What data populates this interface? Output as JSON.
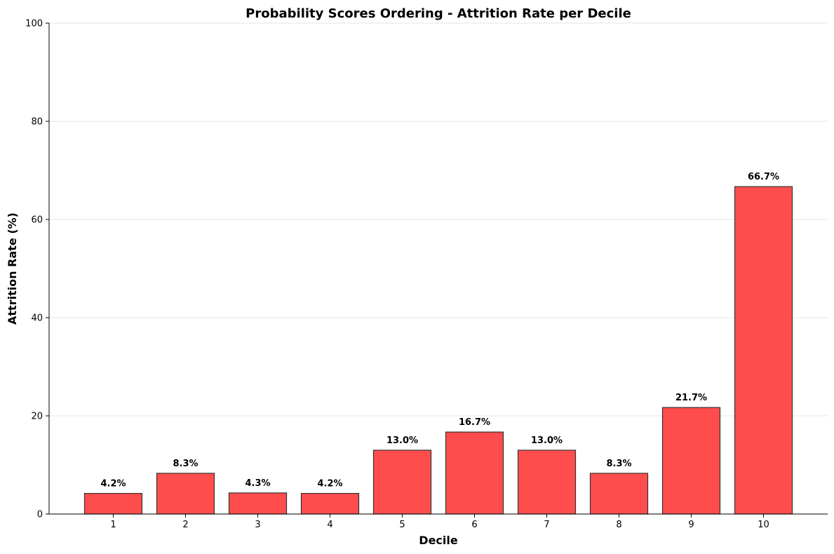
{
  "chart_data": {
    "type": "bar",
    "title": "Probability Scores Ordering - Attrition Rate per Decile",
    "xlabel": "Decile",
    "ylabel": "Attrition Rate (%)",
    "categories": [
      "1",
      "2",
      "3",
      "4",
      "5",
      "6",
      "7",
      "8",
      "9",
      "10"
    ],
    "values": [
      4.2,
      8.3,
      4.3,
      4.2,
      13.0,
      16.7,
      13.0,
      8.3,
      21.7,
      66.7
    ],
    "value_labels": [
      "4.2%",
      "8.3%",
      "4.3%",
      "4.2%",
      "13.0%",
      "16.7%",
      "13.0%",
      "8.3%",
      "21.7%",
      "66.7%"
    ],
    "ylim": [
      0,
      100
    ],
    "yticks": [
      "0",
      "20",
      "40",
      "60",
      "80",
      "100"
    ],
    "grid": "horizontal",
    "bar_color": "#ff4d4d",
    "bar_edge_color": "#333333"
  }
}
